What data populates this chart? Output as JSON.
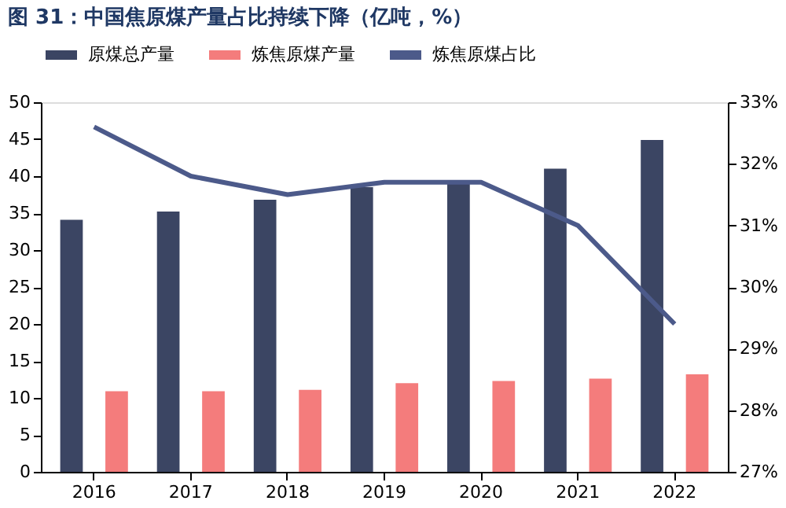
{
  "chart_data": {
    "type": "bar",
    "title": "图 31：中国焦原煤产量占比持续下降（亿吨，%）",
    "categories": [
      "2016",
      "2017",
      "2018",
      "2019",
      "2020",
      "2021",
      "2022"
    ],
    "series": [
      {
        "name": "原煤总产量",
        "color": "#3b4563",
        "values": [
          34.1,
          35.2,
          36.8,
          38.5,
          39.0,
          41.0,
          44.9
        ]
      },
      {
        "name": "炼焦原煤产量",
        "color": "#f47c7c",
        "values": [
          10.9,
          10.9,
          11.1,
          12.0,
          12.3,
          12.6,
          13.2
        ]
      },
      {
        "name": "炼焦原煤占比",
        "color": "#4c5a8a",
        "type": "line",
        "axis": "y2",
        "values": [
          32.6,
          31.8,
          31.5,
          31.7,
          31.7,
          31.0,
          29.4
        ]
      }
    ],
    "ylim": [
      0,
      50
    ],
    "yticks": [
      0,
      5,
      10,
      15,
      20,
      25,
      30,
      35,
      40,
      45,
      50
    ],
    "y2lim": [
      27,
      33
    ],
    "y2ticks": [
      {
        "value": 27,
        "label": "27%"
      },
      {
        "value": 28,
        "label": "28%"
      },
      {
        "value": 29,
        "label": "29%"
      },
      {
        "value": 30,
        "label": "30%"
      },
      {
        "value": 31,
        "label": "31%"
      },
      {
        "value": 32,
        "label": "32%"
      },
      {
        "value": 33,
        "label": "33%"
      }
    ],
    "legend": "top",
    "grid": false,
    "marker": "none"
  }
}
